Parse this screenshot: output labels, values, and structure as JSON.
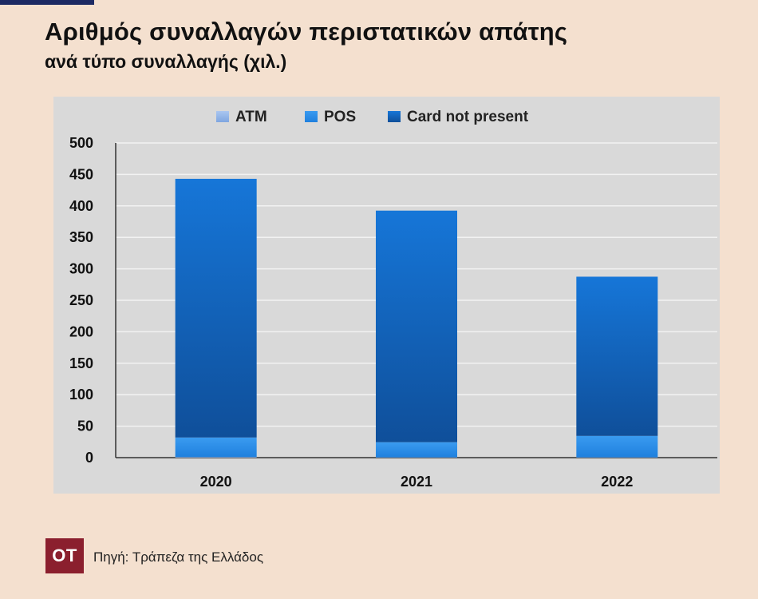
{
  "header": {
    "title": "Αριθμός συναλλαγών περιστατικών απάτης",
    "subtitle": "ανά τύπο συναλλαγής (χιλ.)"
  },
  "footer": {
    "logo_text": "ΟΤ",
    "source": "Πηγή: Τράπεζα της Ελλάδος"
  },
  "colors": {
    "background": "#f4e0cf",
    "panel": "#d9d9d9",
    "atm": "#8fb2e8",
    "pos": "#2f8de6",
    "card_not_present_top": "#1676d8",
    "card_not_present_bottom": "#0f4f9a",
    "logo": "#8b1f2e"
  },
  "chart_data": {
    "type": "bar",
    "stacked": true,
    "title": "Αριθμός συναλλαγών περιστατικών απάτης",
    "subtitle": "ανά τύπο συναλλαγής (χιλ.)",
    "xlabel": "",
    "ylabel": "",
    "categories": [
      "2020",
      "2021",
      "2022"
    ],
    "series": [
      {
        "name": "ATM",
        "values": [
          1,
          0.5,
          0.5
        ]
      },
      {
        "name": "POS",
        "values": [
          31,
          24,
          34
        ]
      },
      {
        "name": "Card not present",
        "values": [
          411,
          368,
          253
        ]
      }
    ],
    "ylim": [
      0,
      500
    ],
    "yticks": [
      "0",
      "50",
      "100",
      "150",
      "200",
      "250",
      "300",
      "350",
      "400",
      "450",
      "500"
    ],
    "grid": true,
    "legend": "top"
  }
}
